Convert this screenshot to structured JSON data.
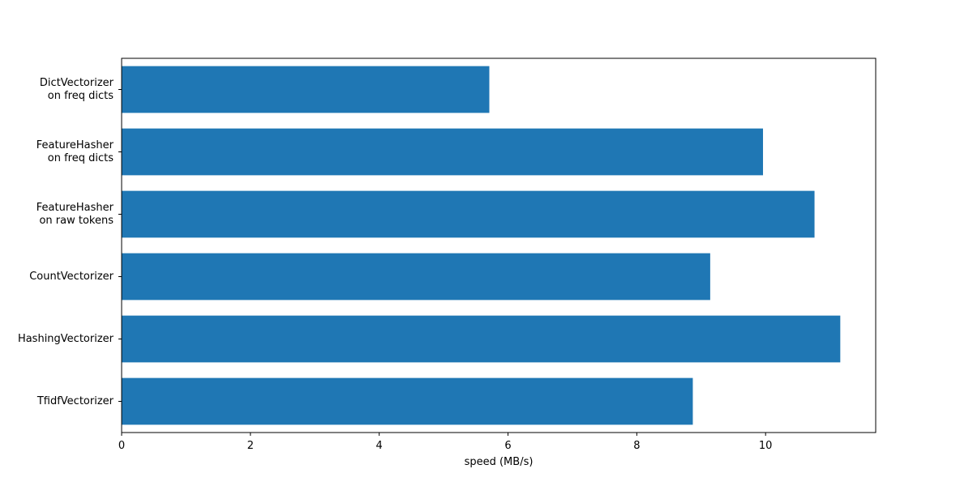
{
  "chart_data": {
    "type": "barh",
    "categories": [
      "DictVectorizer\non freq dicts",
      "FeatureHasher\non freq dicts",
      "FeatureHasher\non raw tokens",
      "CountVectorizer",
      "HashingVectorizer",
      "TfidfVectorizer"
    ],
    "values": [
      5.71,
      9.96,
      10.76,
      9.14,
      11.16,
      8.87
    ],
    "color": "#1f77b4",
    "xlabel": "speed (MB/s)",
    "xlim": [
      0,
      11.71
    ],
    "xticks": [
      0,
      2,
      4,
      6,
      8,
      10
    ]
  }
}
